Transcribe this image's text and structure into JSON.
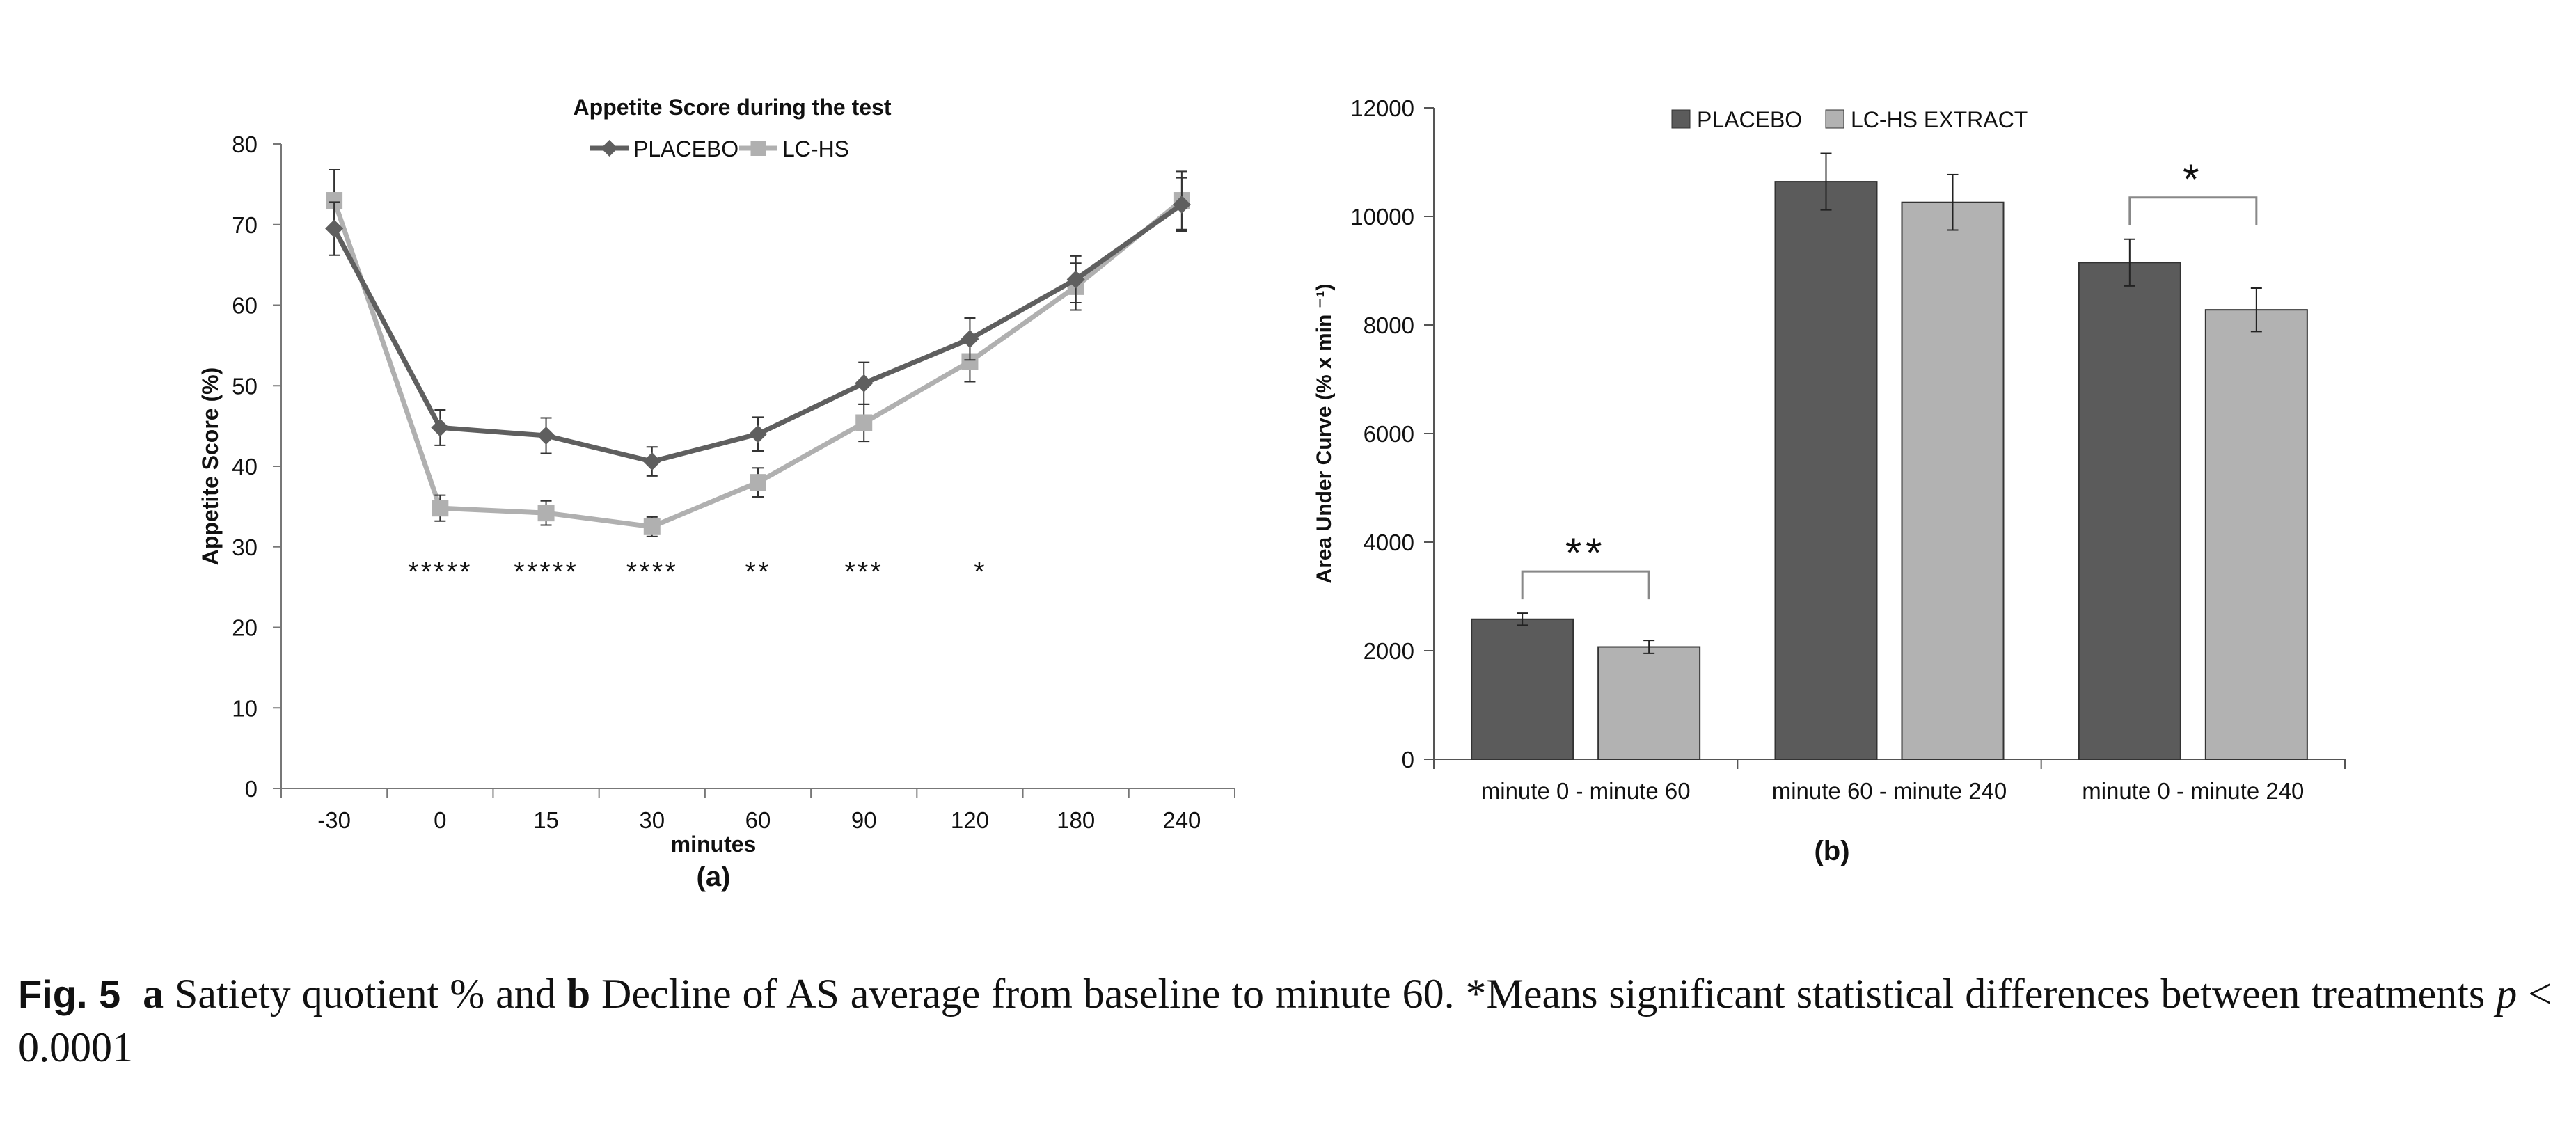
{
  "figure": {
    "panel_a_label": "(a)",
    "panel_b_label": "(b)"
  },
  "caption": {
    "fig_label": "Fig. 5",
    "part_a_letter": "a",
    "part_a_text": " Satiety quotient % and ",
    "part_b_letter": "b",
    "part_b_text": " Decline of AS average from baseline to minute 60. *Means significant statistical differences between treatments ",
    "p_symbol": "p",
    "p_rest": " < 0.0001"
  },
  "chart_data": [
    {
      "type": "line",
      "title": "Appetite Score during the test",
      "xlabel": "minutes",
      "ylabel": "Appetite  Score (%)",
      "ylim": [
        0,
        80
      ],
      "yticks": [
        0,
        10,
        20,
        30,
        40,
        50,
        60,
        70,
        80
      ],
      "categories": [
        "-30",
        "0",
        "15",
        "30",
        "60",
        "90",
        "120",
        "180",
        "240"
      ],
      "legend_position": "top-center",
      "grid": false,
      "series": [
        {
          "name": "PLACEBO",
          "color": "#5f5f5f",
          "marker": "diamond",
          "values": [
            69.5,
            44.8,
            43.8,
            40.6,
            44.0,
            50.3,
            55.8,
            63.2,
            72.5
          ],
          "errors": [
            3.3,
            2.2,
            2.2,
            1.8,
            2.1,
            2.6,
            2.6,
            2.9,
            3.3
          ]
        },
        {
          "name": "LC-HS",
          "color": "#b0b0b0",
          "marker": "square",
          "values": [
            73.0,
            34.8,
            34.2,
            32.5,
            38.0,
            45.4,
            53.0,
            62.3,
            73.0
          ],
          "errors": [
            3.8,
            1.6,
            1.5,
            1.2,
            1.8,
            2.3,
            2.5,
            2.9,
            3.6
          ]
        }
      ],
      "significance": [
        "",
        "*****",
        "*****",
        "****",
        "**",
        "***",
        "*",
        "",
        ""
      ]
    },
    {
      "type": "bar",
      "xlabel": "",
      "ylabel": "Area Under Curve (% x min ⁻¹)",
      "ylim": [
        0,
        12000
      ],
      "yticks": [
        0,
        2000,
        4000,
        6000,
        8000,
        10000,
        12000
      ],
      "categories": [
        "minute 0 - minute 60",
        "minute 60 - minute 240",
        "minute 0 - minute 240"
      ],
      "legend_position": "top-center",
      "grid": false,
      "series": [
        {
          "name": "PLACEBO",
          "color": "#5b5b5b",
          "values": [
            2580,
            10640,
            9150
          ],
          "errors": [
            110,
            520,
            430
          ]
        },
        {
          "name": "LC-HS EXTRACT",
          "color": "#b2b2b2",
          "values": [
            2070,
            10260,
            8280
          ],
          "errors": [
            120,
            510,
            400
          ]
        }
      ],
      "significance": [
        "**",
        "",
        "*"
      ]
    }
  ]
}
